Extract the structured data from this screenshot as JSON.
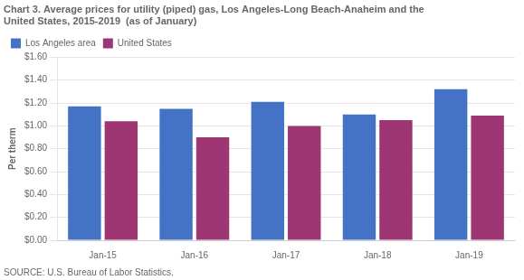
{
  "chart_data": {
    "type": "bar",
    "title": [
      "Chart 3. Average prices for utility (piped) gas, Los Angeles-Long Beach-Anaheim and the",
      "United States, 2015-2019  (as of January)"
    ],
    "ylabel": "Per therm",
    "source": "SOURCE: U.S. Bureau of Labor Statistics.",
    "categories": [
      "Jan-15",
      "Jan-16",
      "Jan-17",
      "Jan-18",
      "Jan-19"
    ],
    "series": [
      {
        "name": "Los Angeles area",
        "color": "#4472C4",
        "values": [
          1.17,
          1.15,
          1.21,
          1.1,
          1.32
        ]
      },
      {
        "name": "United States",
        "color": "#9E3674",
        "values": [
          1.04,
          0.9,
          1.0,
          1.05,
          1.09
        ]
      }
    ],
    "ylim": [
      0.0,
      1.6
    ],
    "yticks": [
      {
        "value": 0.0,
        "label": "$0.00"
      },
      {
        "value": 0.2,
        "label": "$0.20"
      },
      {
        "value": 0.4,
        "label": "$0.40"
      },
      {
        "value": 0.6,
        "label": "$0.60"
      },
      {
        "value": 0.8,
        "label": "$0.80"
      },
      {
        "value": 1.0,
        "label": "$1.00"
      },
      {
        "value": 1.2,
        "label": "$1.20"
      },
      {
        "value": 1.4,
        "label": "$1.40"
      },
      {
        "value": 1.6,
        "label": "$1.60"
      }
    ],
    "grid": true,
    "legend": "upper left"
  }
}
